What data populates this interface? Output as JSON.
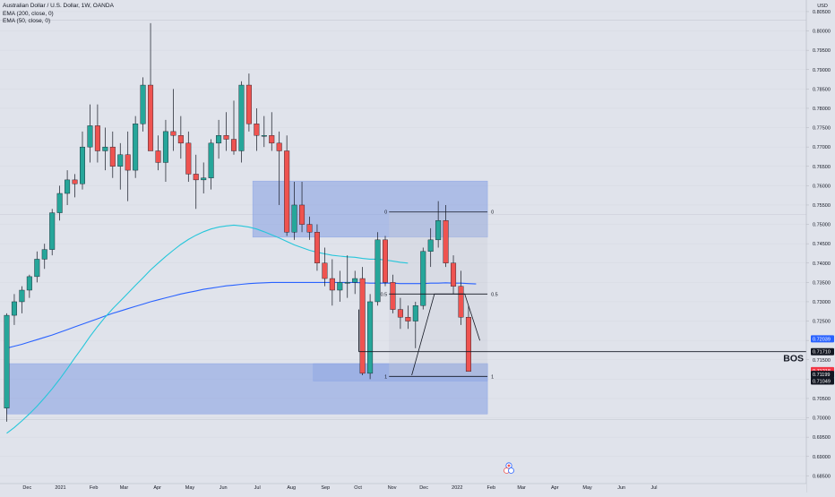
{
  "header": {
    "symbol_title": "Australian Dollar / U.S. Dollar, 1W, OANDA",
    "indicators": [
      "EMA (200, close, 0)",
      "EMA (50, close, 0)"
    ],
    "currency_label": "USD"
  },
  "chart_data": {
    "type": "candlestick",
    "title": "Australian Dollar / U.S. Dollar, 1W, OANDA",
    "ylim": [
      0.683,
      0.808
    ],
    "y_ticks": [
      "0.80500",
      "0.80000",
      "0.79500",
      "0.79000",
      "0.78500",
      "0.78000",
      "0.77500",
      "0.77000",
      "0.76500",
      "0.76000",
      "0.75500",
      "0.75000",
      "0.74500",
      "0.74000",
      "0.73500",
      "0.73000",
      "0.72500",
      "0.72000",
      "0.71500",
      "0.71000",
      "0.70500",
      "0.70000",
      "0.69500",
      "0.69000",
      "0.68500"
    ],
    "x_ticks": [
      {
        "label": "Nov",
        "week": -1.6
      },
      {
        "label": "Dec",
        "week": 2.7
      },
      {
        "label": "2021",
        "week": 7.1
      },
      {
        "label": "Feb",
        "week": 11.5
      },
      {
        "label": "Mar",
        "week": 15.5
      },
      {
        "label": "Apr",
        "week": 19.9
      },
      {
        "label": "May",
        "week": 24.2
      },
      {
        "label": "Jun",
        "week": 28.6
      },
      {
        "label": "Jul",
        "week": 33.1
      },
      {
        "label": "Aug",
        "week": 37.6
      },
      {
        "label": "Sep",
        "week": 42.1
      },
      {
        "label": "Oct",
        "week": 46.4
      },
      {
        "label": "Nov",
        "week": 50.9
      },
      {
        "label": "Dec",
        "week": 55.1
      },
      {
        "label": "2022",
        "week": 59.5
      },
      {
        "label": "Feb",
        "week": 64.0
      },
      {
        "label": "Mar",
        "week": 68.0
      },
      {
        "label": "Apr",
        "week": 72.4
      },
      {
        "label": "May",
        "week": 76.7
      },
      {
        "label": "Jun",
        "week": 81.2
      },
      {
        "label": "Jul",
        "week": 85.5
      }
    ],
    "candles": [
      {
        "o": 0.7025,
        "h": 0.727,
        "l": 0.699,
        "c": 0.7265
      },
      {
        "o": 0.7265,
        "h": 0.732,
        "l": 0.724,
        "c": 0.73
      },
      {
        "o": 0.73,
        "h": 0.734,
        "l": 0.727,
        "c": 0.733
      },
      {
        "o": 0.733,
        "h": 0.737,
        "l": 0.731,
        "c": 0.7365
      },
      {
        "o": 0.7365,
        "h": 0.743,
        "l": 0.735,
        "c": 0.741
      },
      {
        "o": 0.741,
        "h": 0.745,
        "l": 0.7385,
        "c": 0.7435
      },
      {
        "o": 0.7435,
        "h": 0.754,
        "l": 0.742,
        "c": 0.753
      },
      {
        "o": 0.753,
        "h": 0.76,
        "l": 0.751,
        "c": 0.758
      },
      {
        "o": 0.758,
        "h": 0.764,
        "l": 0.755,
        "c": 0.7615
      },
      {
        "o": 0.7615,
        "h": 0.763,
        "l": 0.757,
        "c": 0.7605
      },
      {
        "o": 0.7605,
        "h": 0.774,
        "l": 0.759,
        "c": 0.77
      },
      {
        "o": 0.77,
        "h": 0.781,
        "l": 0.766,
        "c": 0.7755
      },
      {
        "o": 0.7755,
        "h": 0.781,
        "l": 0.766,
        "c": 0.769
      },
      {
        "o": 0.769,
        "h": 0.775,
        "l": 0.764,
        "c": 0.77
      },
      {
        "o": 0.77,
        "h": 0.774,
        "l": 0.762,
        "c": 0.765
      },
      {
        "o": 0.765,
        "h": 0.771,
        "l": 0.759,
        "c": 0.768
      },
      {
        "o": 0.768,
        "h": 0.774,
        "l": 0.756,
        "c": 0.764
      },
      {
        "o": 0.764,
        "h": 0.778,
        "l": 0.762,
        "c": 0.776
      },
      {
        "o": 0.776,
        "h": 0.788,
        "l": 0.774,
        "c": 0.786
      },
      {
        "o": 0.786,
        "h": 0.802,
        "l": 0.769,
        "c": 0.769
      },
      {
        "o": 0.769,
        "h": 0.773,
        "l": 0.764,
        "c": 0.766
      },
      {
        "o": 0.766,
        "h": 0.777,
        "l": 0.761,
        "c": 0.774
      },
      {
        "o": 0.774,
        "h": 0.785,
        "l": 0.769,
        "c": 0.773
      },
      {
        "o": 0.773,
        "h": 0.778,
        "l": 0.767,
        "c": 0.771
      },
      {
        "o": 0.771,
        "h": 0.774,
        "l": 0.761,
        "c": 0.763
      },
      {
        "o": 0.763,
        "h": 0.768,
        "l": 0.754,
        "c": 0.7615
      },
      {
        "o": 0.7615,
        "h": 0.766,
        "l": 0.758,
        "c": 0.762
      },
      {
        "o": 0.762,
        "h": 0.772,
        "l": 0.759,
        "c": 0.771
      },
      {
        "o": 0.771,
        "h": 0.777,
        "l": 0.767,
        "c": 0.773
      },
      {
        "o": 0.773,
        "h": 0.779,
        "l": 0.769,
        "c": 0.772
      },
      {
        "o": 0.772,
        "h": 0.782,
        "l": 0.768,
        "c": 0.769
      },
      {
        "o": 0.769,
        "h": 0.787,
        "l": 0.766,
        "c": 0.786
      },
      {
        "o": 0.786,
        "h": 0.789,
        "l": 0.774,
        "c": 0.776
      },
      {
        "o": 0.776,
        "h": 0.78,
        "l": 0.769,
        "c": 0.773
      },
      {
        "o": 0.773,
        "h": 0.778,
        "l": 0.77,
        "c": 0.773
      },
      {
        "o": 0.773,
        "h": 0.779,
        "l": 0.769,
        "c": 0.771
      },
      {
        "o": 0.771,
        "h": 0.774,
        "l": 0.755,
        "c": 0.769
      },
      {
        "o": 0.769,
        "h": 0.773,
        "l": 0.747,
        "c": 0.748
      },
      {
        "o": 0.748,
        "h": 0.761,
        "l": 0.746,
        "c": 0.755
      },
      {
        "o": 0.755,
        "h": 0.761,
        "l": 0.748,
        "c": 0.75
      },
      {
        "o": 0.75,
        "h": 0.752,
        "l": 0.746,
        "c": 0.748
      },
      {
        "o": 0.748,
        "h": 0.75,
        "l": 0.738,
        "c": 0.74
      },
      {
        "o": 0.74,
        "h": 0.744,
        "l": 0.734,
        "c": 0.736
      },
      {
        "o": 0.736,
        "h": 0.741,
        "l": 0.729,
        "c": 0.733
      },
      {
        "o": 0.733,
        "h": 0.738,
        "l": 0.73,
        "c": 0.735
      },
      {
        "o": 0.735,
        "h": 0.742,
        "l": 0.731,
        "c": 0.735
      },
      {
        "o": 0.735,
        "h": 0.738,
        "l": 0.732,
        "c": 0.736
      },
      {
        "o": 0.736,
        "h": 0.739,
        "l": 0.711,
        "c": 0.7115
      },
      {
        "o": 0.7115,
        "h": 0.732,
        "l": 0.71,
        "c": 0.73
      },
      {
        "o": 0.73,
        "h": 0.748,
        "l": 0.729,
        "c": 0.746
      },
      {
        "o": 0.746,
        "h": 0.747,
        "l": 0.734,
        "c": 0.735
      },
      {
        "o": 0.735,
        "h": 0.737,
        "l": 0.727,
        "c": 0.728
      },
      {
        "o": 0.728,
        "h": 0.731,
        "l": 0.723,
        "c": 0.726
      },
      {
        "o": 0.726,
        "h": 0.729,
        "l": 0.723,
        "c": 0.725
      },
      {
        "o": 0.725,
        "h": 0.73,
        "l": 0.718,
        "c": 0.729
      },
      {
        "o": 0.729,
        "h": 0.744,
        "l": 0.728,
        "c": 0.743
      },
      {
        "o": 0.743,
        "h": 0.749,
        "l": 0.739,
        "c": 0.746
      },
      {
        "o": 0.746,
        "h": 0.756,
        "l": 0.744,
        "c": 0.751
      },
      {
        "o": 0.751,
        "h": 0.755,
        "l": 0.739,
        "c": 0.74
      },
      {
        "o": 0.74,
        "h": 0.742,
        "l": 0.732,
        "c": 0.734
      },
      {
        "o": 0.734,
        "h": 0.738,
        "l": 0.724,
        "c": 0.726
      },
      {
        "o": 0.726,
        "h": 0.729,
        "l": 0.712,
        "c": 0.712
      }
    ],
    "ema_200": [
      0.718,
      0.7185,
      0.719,
      0.7196,
      0.7202,
      0.7208,
      0.7214,
      0.7221,
      0.7228,
      0.7235,
      0.7242,
      0.7249,
      0.7256,
      0.7263,
      0.727,
      0.7276,
      0.7282,
      0.7288,
      0.7294,
      0.73,
      0.7305,
      0.731,
      0.7315,
      0.732,
      0.7324,
      0.7328,
      0.7332,
      0.7335,
      0.7338,
      0.7341,
      0.7343,
      0.7345,
      0.7347,
      0.7348,
      0.7349,
      0.735,
      0.735,
      0.735,
      0.735,
      0.735,
      0.735,
      0.735,
      0.735,
      0.735,
      0.735,
      0.735,
      0.735,
      0.7349,
      0.7348,
      0.7348,
      0.7348,
      0.7348,
      0.7347,
      0.7347,
      0.7347,
      0.7347,
      0.7348,
      0.7348,
      0.7349,
      0.7348,
      0.7348,
      0.7347,
      0.7346
    ],
    "ema_50": [
      0.696,
      0.6975,
      0.6992,
      0.701,
      0.703,
      0.7052,
      0.7075,
      0.71,
      0.7127,
      0.7155,
      0.7182,
      0.721,
      0.7236,
      0.726,
      0.7282,
      0.7302,
      0.7322,
      0.7342,
      0.7362,
      0.7382,
      0.74,
      0.7417,
      0.7433,
      0.7448,
      0.7461,
      0.7472,
      0.7481,
      0.7488,
      0.7493,
      0.7496,
      0.7498,
      0.7496,
      0.7493,
      0.7488,
      0.7481,
      0.7473,
      0.7465,
      0.7456,
      0.7447,
      0.744,
      0.7433,
      0.7428,
      0.7424,
      0.742,
      0.7418,
      0.7416,
      0.7415,
      0.7412,
      0.741,
      0.741,
      0.7408,
      0.7405,
      0.7402,
      0.74
    ],
    "zones": [
      {
        "from_week": 32.5,
        "to_week": 63.5,
        "y_low": 0.7467,
        "y_high": 0.7612
      },
      {
        "from_week": 0,
        "to_week": 63.5,
        "y_low": 0.701,
        "y_high": 0.714
      },
      {
        "from_week": 40.5,
        "to_week": 63.5,
        "y_low": 0.7095,
        "y_high": 0.714
      }
    ],
    "fib": {
      "from_week": 50.5,
      "to_week": 63.5,
      "price_0": 0.7532,
      "price_1": 0.7107,
      "levels": [
        {
          "label": "0",
          "price": 0.7532
        },
        {
          "label": "0.5",
          "price": 0.732
        },
        {
          "label": "1",
          "price": 0.7107
        }
      ]
    },
    "projection_path": [
      {
        "week": 53.5,
        "price": 0.711
      },
      {
        "week": 56.5,
        "price": 0.732
      },
      {
        "week": 60.5,
        "price": 0.732
      },
      {
        "week": 62.5,
        "price": 0.72
      }
    ],
    "bos_line": {
      "from_week": 46.5,
      "price": 0.7171,
      "label": "BOS"
    },
    "bos_level_line": {
      "from_week": 46.5,
      "to_week": 46.5,
      "price_top": 0.728
    },
    "price_labels": [
      {
        "text": "0.72039",
        "price": 0.7204,
        "color": "#2962ff"
      },
      {
        "text": "0.71710",
        "price": 0.7171,
        "color": "#131722"
      },
      {
        "text": "0.71218",
        "price": 0.7122,
        "color": "#f23645"
      },
      {
        "text": "0.71199",
        "price": 0.7112,
        "color": "#131722"
      },
      {
        "text": "0.71049",
        "price": 0.7095,
        "color": "#131722"
      }
    ],
    "colors": {
      "up": "#26a69a",
      "down": "#ef5350",
      "ema_200": "#2962ff",
      "ema_50": "#26c6da",
      "zone": "#6f8fe0",
      "background": "#e0e3eb"
    }
  }
}
